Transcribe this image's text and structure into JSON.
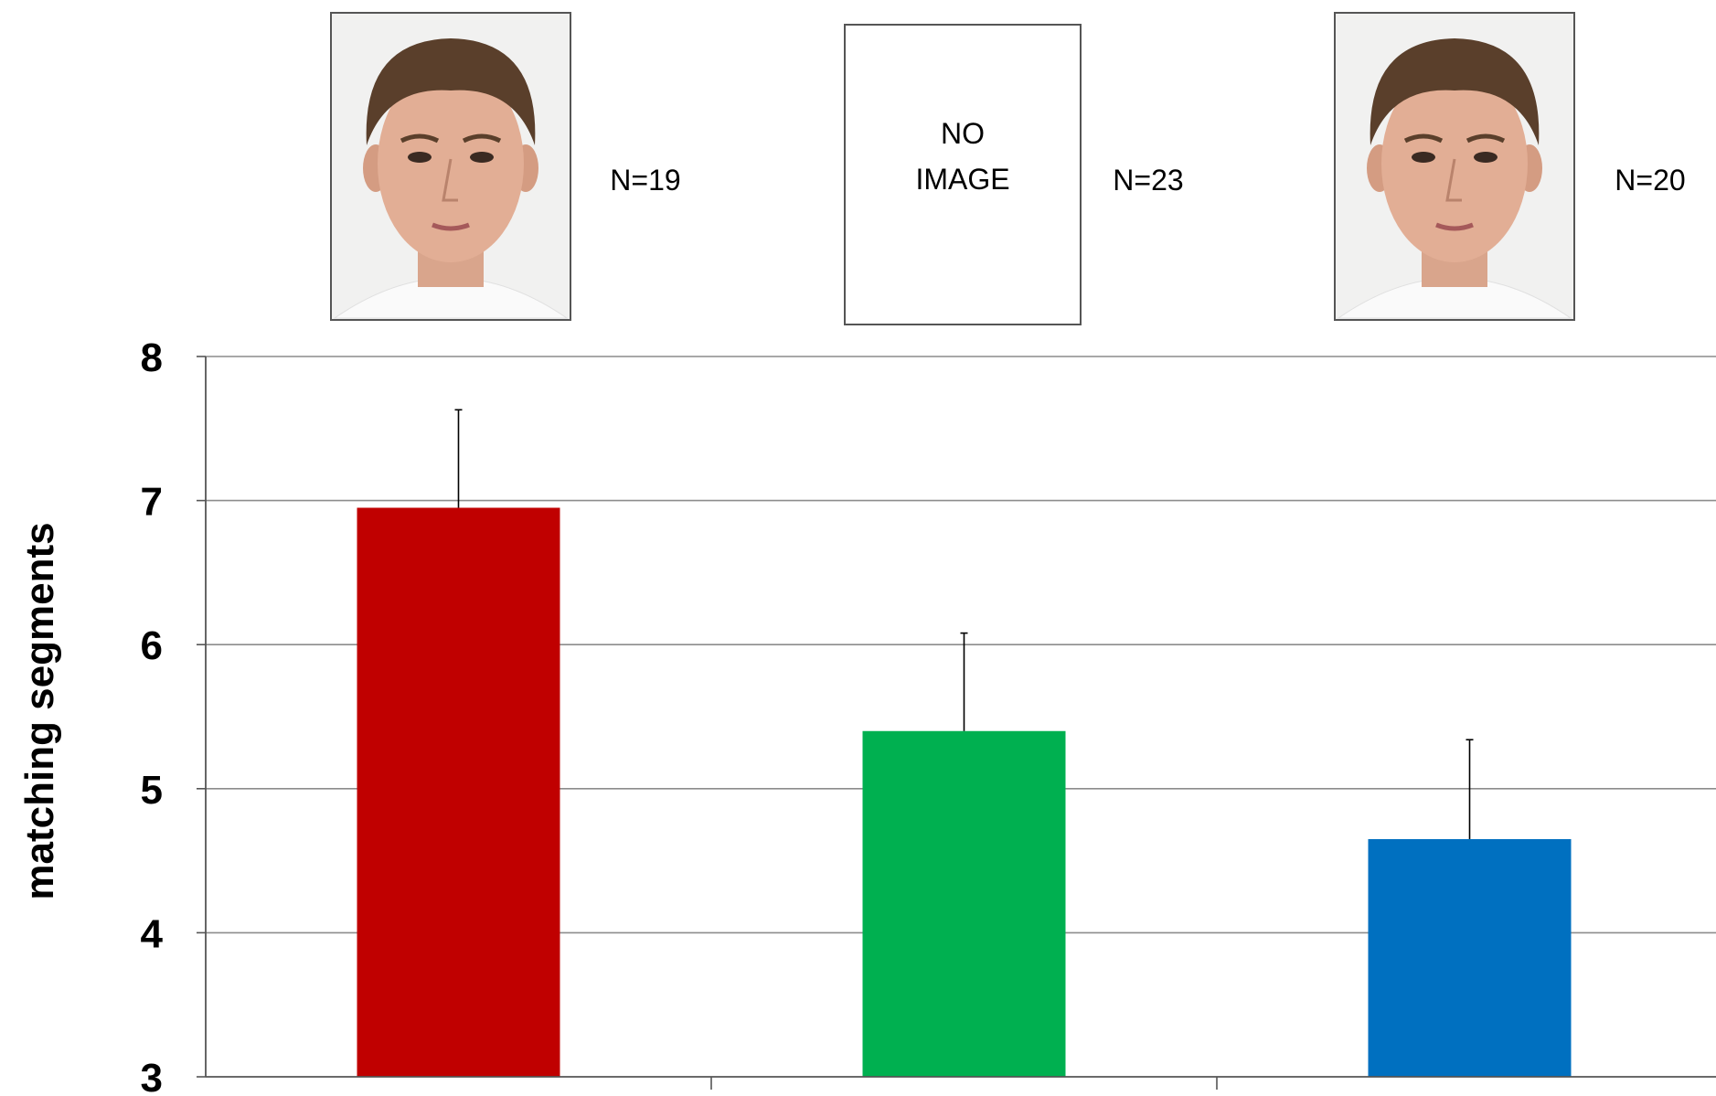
{
  "chart_data": {
    "type": "bar",
    "ylabel": "matching segments",
    "ylim": [
      3,
      8
    ],
    "yticks": [
      3,
      4,
      5,
      6,
      7,
      8
    ],
    "grid": true,
    "categories": [
      {
        "n_label": "N=19",
        "value": 6.95,
        "error": 0.68,
        "color": "#c00000",
        "header": {
          "kind": "face-photo",
          "icon": "face-photo-icon"
        }
      },
      {
        "n_label": "N=23",
        "value": 5.4,
        "error": 0.68,
        "color": "#00b050",
        "header": {
          "kind": "placeholder",
          "lines": [
            "NO",
            "IMAGE"
          ]
        }
      },
      {
        "n_label": "N=20",
        "value": 4.65,
        "error": 0.69,
        "color": "#0070c0",
        "header": {
          "kind": "face-photo",
          "icon": "face-photo-icon"
        }
      }
    ]
  }
}
